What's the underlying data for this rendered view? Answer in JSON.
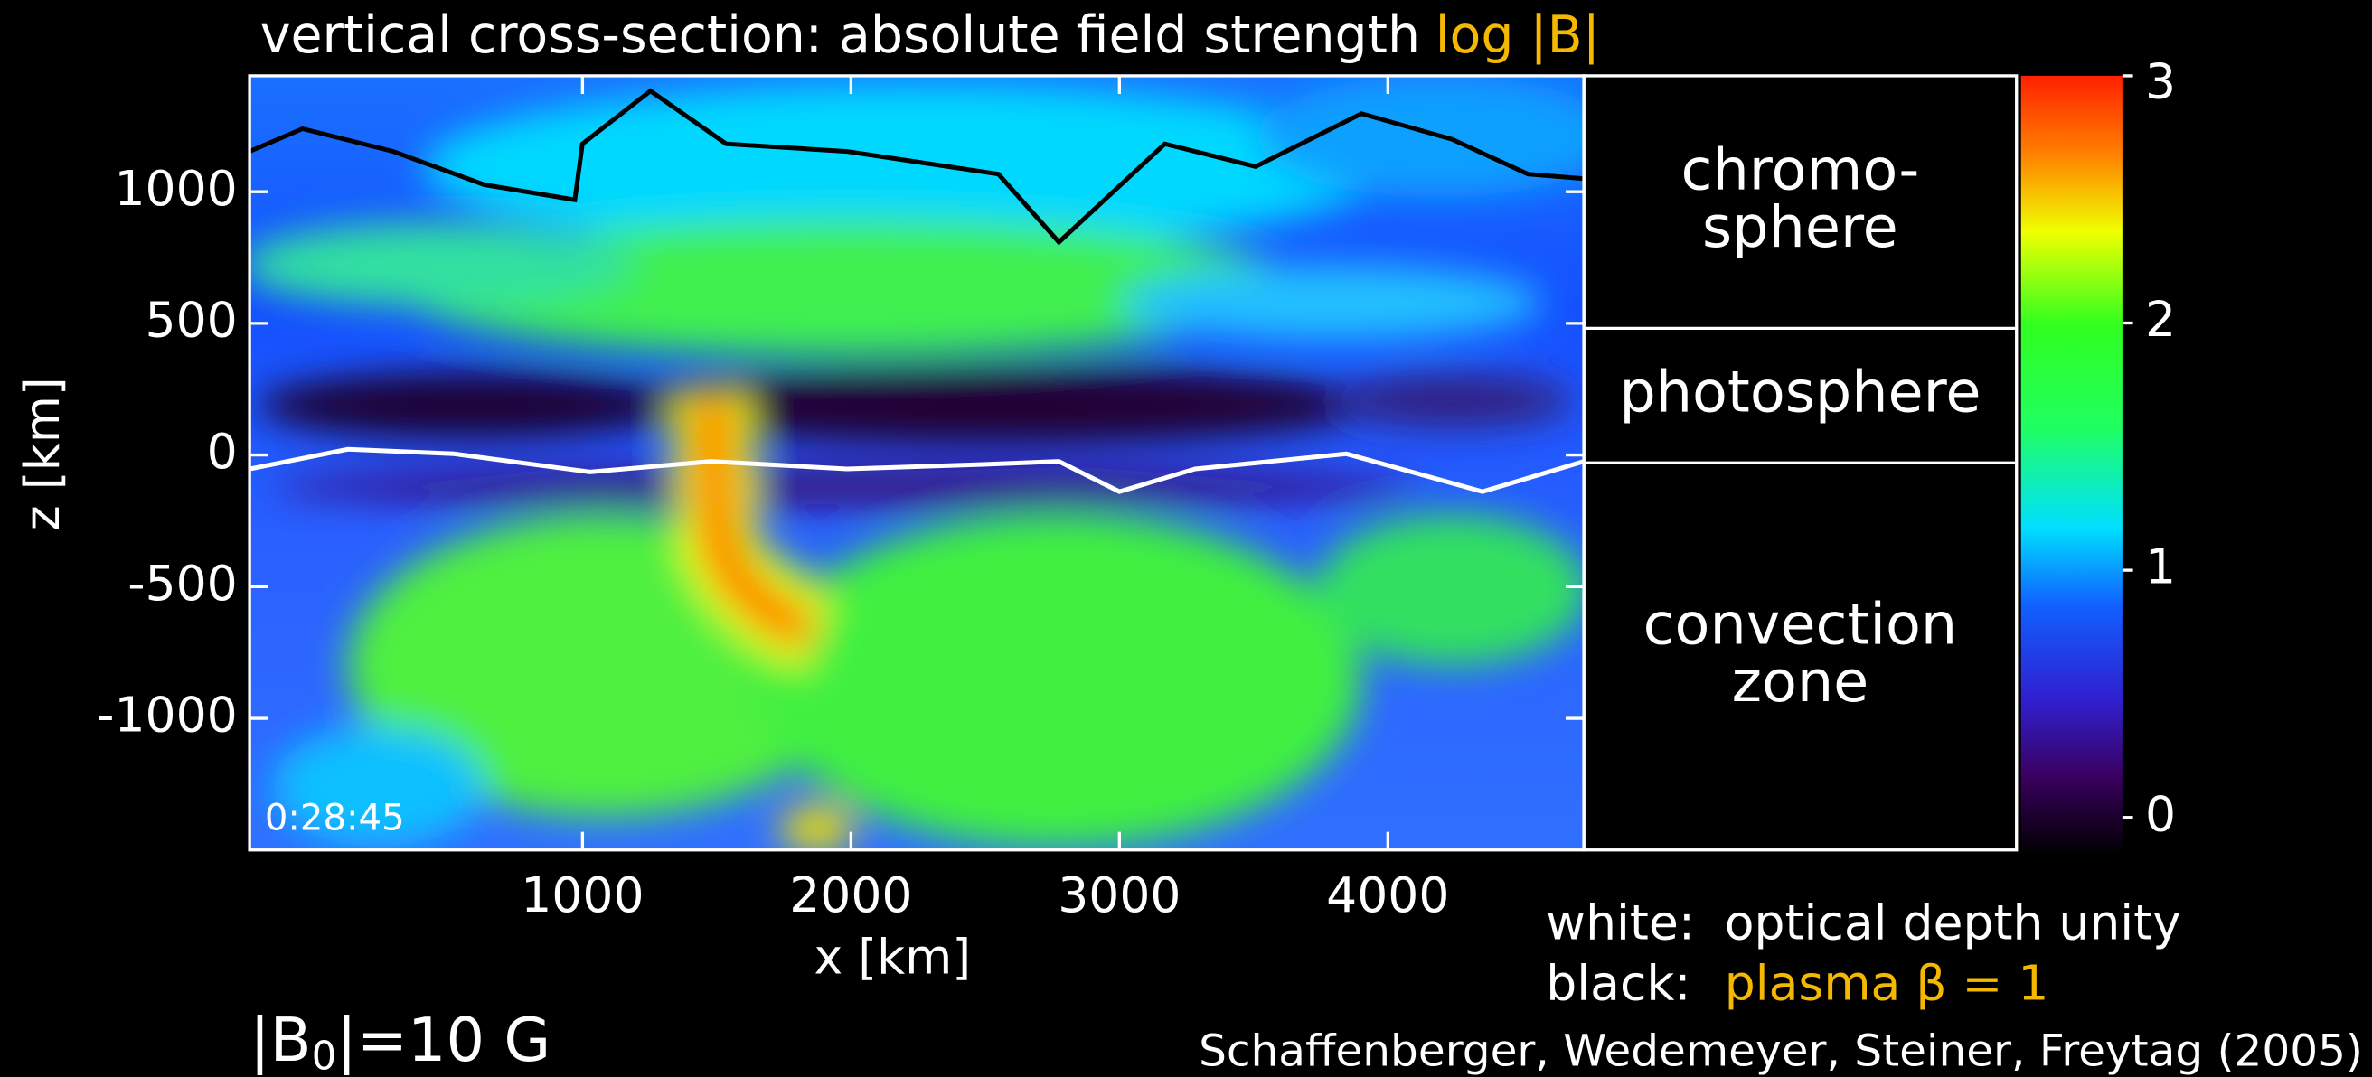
{
  "chart_data": {
    "type": "heatmap",
    "title": "vertical cross-section: absolute field strength",
    "colorbar_label": "log |B|",
    "xlabel": "x [km]",
    "ylabel": "z [km]",
    "xlim": [
      -240,
      4730
    ],
    "ylim": [
      -1500,
      1440
    ],
    "xticks": [
      1000,
      2000,
      3000,
      4000
    ],
    "yticks": [
      -1000,
      -500,
      0,
      500,
      1000
    ],
    "clim": [
      -0.15,
      3.0
    ],
    "cticks": [
      0,
      1,
      2,
      3
    ],
    "timestamp": "0:28:45"
  },
  "zones": [
    {
      "lines": [
        "chromo-",
        "sphere"
      ]
    },
    {
      "lines": [
        "photosphere"
      ]
    },
    {
      "lines": [
        "convection",
        "zone"
      ]
    }
  ],
  "legend": [
    {
      "key": "white:",
      "text": "optical depth unity"
    },
    {
      "key": "black:",
      "text": "plasma β = 1"
    }
  ],
  "field_label": {
    "prefix": "|B",
    "sub": "0",
    "suffix": "|=10 G"
  },
  "citation": "Schaffenberger,  Wedemeyer, Steiner, Freytag (2005)"
}
